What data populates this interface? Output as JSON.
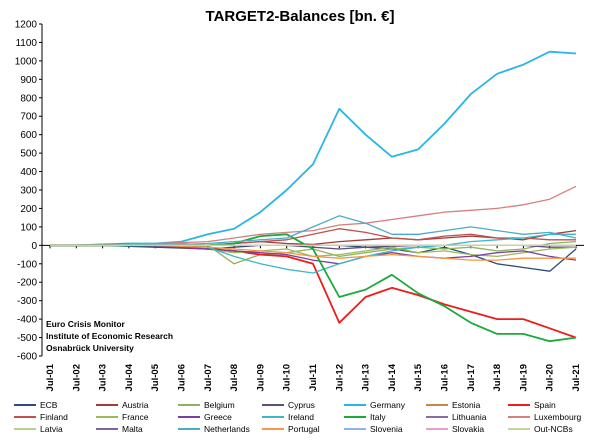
{
  "chart_data": {
    "type": "line",
    "title": "TARGET2-Balances [bn. €]",
    "xlabel": "",
    "ylabel": "",
    "ylim": [
      -600,
      1200
    ],
    "yticks": [
      "1200",
      "1100",
      "1000",
      "900",
      "800",
      "700",
      "600",
      "500",
      "400",
      "300",
      "200",
      "100",
      "0",
      "-100",
      "-200",
      "-300",
      "-400",
      "-500",
      "-600"
    ],
    "grid": false,
    "legend_position": "bottom",
    "x": [
      "Jul-01",
      "Jul-02",
      "Jul-03",
      "Jul-04",
      "Jul-05",
      "Jul-06",
      "Jul-07",
      "Jul-08",
      "Jul-09",
      "Jul-10",
      "Jul-11",
      "Jul-12",
      "Jul-13",
      "Jul-14",
      "Jul-15",
      "Jul-16",
      "Jul-17",
      "Jul-18",
      "Jul-19",
      "Jul-20",
      "Jul-21"
    ],
    "annotations": [
      "Euro Crisis Monitor",
      "Institute of Economic Research",
      "Osnabrück University"
    ],
    "series": [
      {
        "name": "ECB",
        "color": "#2f4b7c",
        "values": [
          0,
          0,
          0,
          -5,
          -10,
          -15,
          -20,
          -10,
          0,
          0,
          0,
          0,
          -10,
          -20,
          -40,
          -10,
          -50,
          -100,
          -120,
          -140,
          -20
        ]
      },
      {
        "name": "Austria",
        "color": "#a33b3b",
        "values": [
          0,
          0,
          0,
          0,
          0,
          0,
          0,
          10,
          20,
          10,
          5,
          20,
          30,
          40,
          30,
          40,
          50,
          40,
          30,
          60,
          80
        ]
      },
      {
        "name": "Belgium",
        "color": "#8fb25a",
        "values": [
          0,
          0,
          5,
          10,
          5,
          10,
          0,
          -100,
          -50,
          -40,
          -20,
          -60,
          -40,
          -20,
          -10,
          -20,
          -10,
          -30,
          -20,
          10,
          20
        ]
      },
      {
        "name": "Cyprus",
        "color": "#5a5080",
        "values": [
          0,
          0,
          0,
          0,
          0,
          0,
          0,
          0,
          0,
          0,
          -10,
          -20,
          -10,
          -5,
          0,
          0,
          0,
          0,
          0,
          -10,
          -10
        ]
      },
      {
        "name": "Germany",
        "color": "#2ab5e8",
        "values": [
          0,
          0,
          5,
          10,
          10,
          20,
          60,
          90,
          180,
          300,
          440,
          740,
          600,
          480,
          520,
          660,
          820,
          930,
          980,
          1050,
          1040
        ]
      },
      {
        "name": "Estonia",
        "color": "#c88a3a",
        "values": [
          0,
          0,
          0,
          0,
          0,
          0,
          0,
          0,
          0,
          0,
          0,
          0,
          0,
          0,
          0,
          0,
          0,
          0,
          0,
          0,
          0
        ]
      },
      {
        "name": "Spain",
        "color": "#ee1c1c",
        "values": [
          0,
          0,
          0,
          5,
          0,
          -10,
          -20,
          -30,
          -50,
          -60,
          -100,
          -420,
          -280,
          -230,
          -270,
          -320,
          -360,
          -400,
          -400,
          -450,
          -500
        ]
      },
      {
        "name": "Finland",
        "color": "#c0504d",
        "values": [
          0,
          0,
          0,
          0,
          0,
          0,
          0,
          10,
          20,
          30,
          60,
          90,
          70,
          40,
          30,
          50,
          60,
          40,
          40,
          30,
          30
        ]
      },
      {
        "name": "France",
        "color": "#9bbb59",
        "values": [
          0,
          0,
          0,
          0,
          0,
          -5,
          -20,
          -40,
          -30,
          -20,
          -60,
          -50,
          -30,
          -10,
          -40,
          -30,
          -50,
          -60,
          -40,
          -20,
          -10
        ]
      },
      {
        "name": "Greece",
        "color": "#7b3f9e",
        "values": [
          0,
          0,
          0,
          0,
          -5,
          -10,
          -20,
          -30,
          -40,
          -50,
          -80,
          -100,
          -60,
          -40,
          -60,
          -70,
          -60,
          -40,
          -30,
          -60,
          -80
        ]
      },
      {
        "name": "Ireland",
        "color": "#3fb6c8",
        "values": [
          0,
          0,
          0,
          0,
          0,
          0,
          -10,
          -60,
          -100,
          -130,
          -150,
          -100,
          -60,
          -30,
          -10,
          0,
          20,
          30,
          40,
          60,
          60
        ]
      },
      {
        "name": "Italy",
        "color": "#1aaa3a",
        "values": [
          0,
          0,
          0,
          0,
          0,
          0,
          0,
          10,
          50,
          60,
          -20,
          -280,
          -240,
          -160,
          -260,
          -330,
          -420,
          -480,
          -480,
          -520,
          -500
        ]
      },
      {
        "name": "Lithuania",
        "color": "#8470a0",
        "values": [
          0,
          0,
          0,
          0,
          0,
          0,
          0,
          0,
          0,
          0,
          0,
          0,
          0,
          0,
          0,
          0,
          0,
          0,
          0,
          0,
          0
        ]
      },
      {
        "name": "Luxembourg",
        "color": "#d67f7f",
        "values": [
          0,
          0,
          0,
          5,
          10,
          15,
          20,
          40,
          60,
          70,
          80,
          110,
          120,
          140,
          160,
          180,
          190,
          200,
          220,
          250,
          320
        ]
      },
      {
        "name": "Latvia",
        "color": "#b9cf8a",
        "values": [
          0,
          0,
          0,
          0,
          0,
          0,
          0,
          0,
          0,
          0,
          0,
          0,
          0,
          0,
          0,
          0,
          0,
          0,
          0,
          0,
          0
        ]
      },
      {
        "name": "Malta",
        "color": "#8064a2",
        "values": [
          0,
          0,
          0,
          0,
          0,
          0,
          0,
          0,
          0,
          0,
          0,
          0,
          0,
          0,
          0,
          0,
          0,
          0,
          0,
          0,
          0
        ]
      },
      {
        "name": "Netherlands",
        "color": "#4aacc6",
        "values": [
          0,
          0,
          0,
          5,
          5,
          5,
          10,
          20,
          30,
          40,
          100,
          160,
          120,
          60,
          60,
          80,
          100,
          80,
          60,
          70,
          40
        ]
      },
      {
        "name": "Portugal",
        "color": "#f79646",
        "values": [
          0,
          0,
          0,
          0,
          0,
          -5,
          -10,
          -20,
          -30,
          -40,
          -60,
          -70,
          -60,
          -50,
          -60,
          -70,
          -80,
          -80,
          -70,
          -70,
          -70
        ]
      },
      {
        "name": "Slovenia",
        "color": "#8db4e2",
        "values": [
          0,
          0,
          0,
          0,
          0,
          0,
          0,
          0,
          0,
          0,
          0,
          0,
          0,
          0,
          0,
          0,
          0,
          0,
          0,
          0,
          0
        ]
      },
      {
        "name": "Slovakia",
        "color": "#e6a0c4",
        "values": [
          0,
          0,
          0,
          0,
          0,
          0,
          0,
          0,
          0,
          0,
          0,
          0,
          0,
          0,
          0,
          0,
          0,
          0,
          0,
          0,
          0
        ]
      },
      {
        "name": "Out-NCBs",
        "color": "#c4d79b",
        "values": [
          0,
          0,
          0,
          0,
          0,
          0,
          0,
          0,
          0,
          0,
          0,
          0,
          0,
          0,
          0,
          0,
          0,
          0,
          0,
          0,
          0
        ]
      }
    ]
  }
}
